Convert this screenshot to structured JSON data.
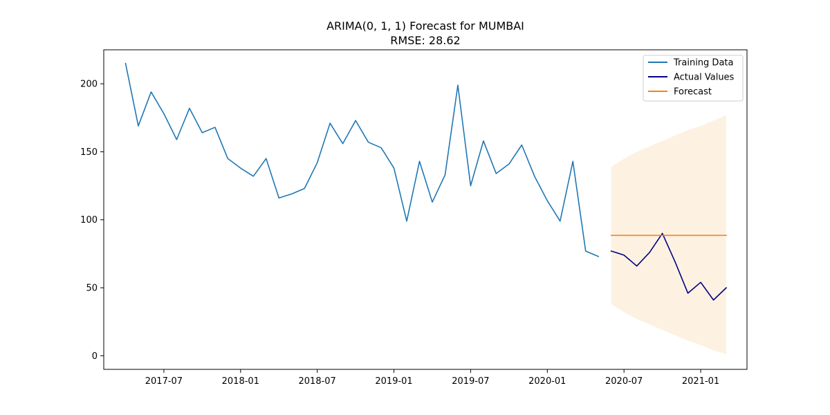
{
  "chart_data": {
    "type": "line",
    "title": "ARIMA(0, 1, 1) Forecast for MUMBAI",
    "subtitle": "RMSE: 28.62",
    "xlabel": "",
    "ylabel": "",
    "ylim": [
      -10,
      225
    ],
    "xlim": [
      "2017-02-10",
      "2021-04-20"
    ],
    "x_ticks": [
      "2017-07",
      "2018-01",
      "2018-07",
      "2019-01",
      "2019-07",
      "2020-01",
      "2020-07",
      "2021-01"
    ],
    "y_ticks": [
      0,
      50,
      100,
      150,
      200
    ],
    "grid": false,
    "legend_position": "top-right",
    "series": [
      {
        "name": "Training Data",
        "color": "#1f77b4",
        "x": [
          "2017-04",
          "2017-05",
          "2017-06",
          "2017-07",
          "2017-08",
          "2017-09",
          "2017-10",
          "2017-11",
          "2017-12",
          "2018-01",
          "2018-02",
          "2018-03",
          "2018-04",
          "2018-05",
          "2018-06",
          "2018-07",
          "2018-08",
          "2018-09",
          "2018-10",
          "2018-11",
          "2018-12",
          "2019-01",
          "2019-02",
          "2019-03",
          "2019-04",
          "2019-05",
          "2019-06",
          "2019-07",
          "2019-08",
          "2019-09",
          "2019-10",
          "2019-11",
          "2019-12",
          "2020-01",
          "2020-02",
          "2020-03",
          "2020-04",
          "2020-05"
        ],
        "values": [
          215,
          169,
          194,
          178,
          159,
          182,
          164,
          168,
          145,
          138,
          132,
          145,
          116,
          119,
          123,
          142,
          171,
          156,
          173,
          157,
          153,
          138,
          99,
          143,
          113,
          133,
          199,
          125,
          158,
          134,
          141,
          155,
          132,
          114,
          99,
          143,
          77,
          73
        ]
      },
      {
        "name": "Actual Values",
        "color": "#000080",
        "x": [
          "2020-06",
          "2020-07",
          "2020-08",
          "2020-09",
          "2020-10",
          "2020-11",
          "2020-12",
          "2021-01",
          "2021-02",
          "2021-03"
        ],
        "values": [
          77,
          74,
          66,
          76,
          90,
          69,
          46,
          54,
          41,
          50
        ]
      },
      {
        "name": "Forecast",
        "color": "#ff7f0e",
        "x": [
          "2020-06",
          "2020-07",
          "2020-08",
          "2020-09",
          "2020-10",
          "2020-11",
          "2020-12",
          "2021-01",
          "2021-02",
          "2021-03"
        ],
        "values": [
          88.5,
          88.5,
          88.5,
          88.5,
          88.5,
          88.5,
          88.5,
          88.5,
          88.5,
          88.5
        ]
      }
    ],
    "confidence_interval": {
      "color": "#fdf2e2",
      "x": [
        "2020-06",
        "2020-07",
        "2020-08",
        "2020-09",
        "2020-10",
        "2020-11",
        "2020-12",
        "2021-01",
        "2021-02",
        "2021-03"
      ],
      "lower": [
        38,
        32,
        27,
        23,
        19,
        15,
        11,
        8,
        4,
        1
      ],
      "upper": [
        139,
        145,
        150,
        154,
        158,
        162,
        166,
        169,
        173,
        177
      ]
    }
  }
}
